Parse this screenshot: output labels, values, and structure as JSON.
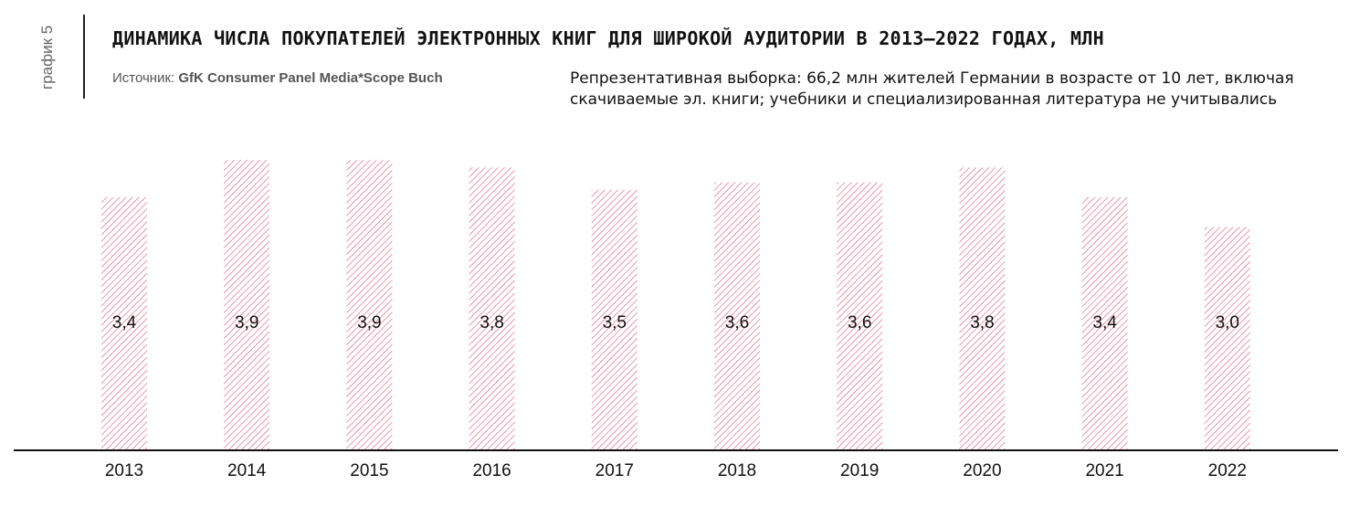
{
  "side_label": "график 5",
  "title": "ДИНАМИКА ЧИСЛА ПОКУПАТЕЛЕЙ ЭЛЕКТРОННЫХ КНИГ ДЛЯ ШИРОКОЙ АУДИТОРИИ В 2013–2022 ГОДАХ, МЛН",
  "source": {
    "prefix": "Источник: ",
    "name": "GfK Consumer Panel Media*Scope Buch"
  },
  "note": {
    "line1": "Репрезентативная выборка: 66,2 млн жителей Германии в возрасте от 10 лет, включая",
    "line2": "скачиваемые эл. книги; учебники и специализированная литература не учитывались"
  },
  "colors": {
    "bar_hatch": "#e0607a",
    "axis": "#111111",
    "text": "#111111"
  },
  "chart_data": {
    "type": "bar",
    "categories": [
      "2013",
      "2014",
      "2015",
      "2016",
      "2017",
      "2018",
      "2019",
      "2020",
      "2021",
      "2022"
    ],
    "values": [
      3.4,
      3.9,
      3.9,
      3.8,
      3.5,
      3.6,
      3.6,
      3.8,
      3.4,
      3.0
    ],
    "value_labels": [
      "3,4",
      "3,9",
      "3,9",
      "3,8",
      "3,5",
      "3,6",
      "3,6",
      "3,8",
      "3,4",
      "3,0"
    ],
    "fill": "diagonal hatch",
    "grid": false,
    "legend": "none"
  }
}
